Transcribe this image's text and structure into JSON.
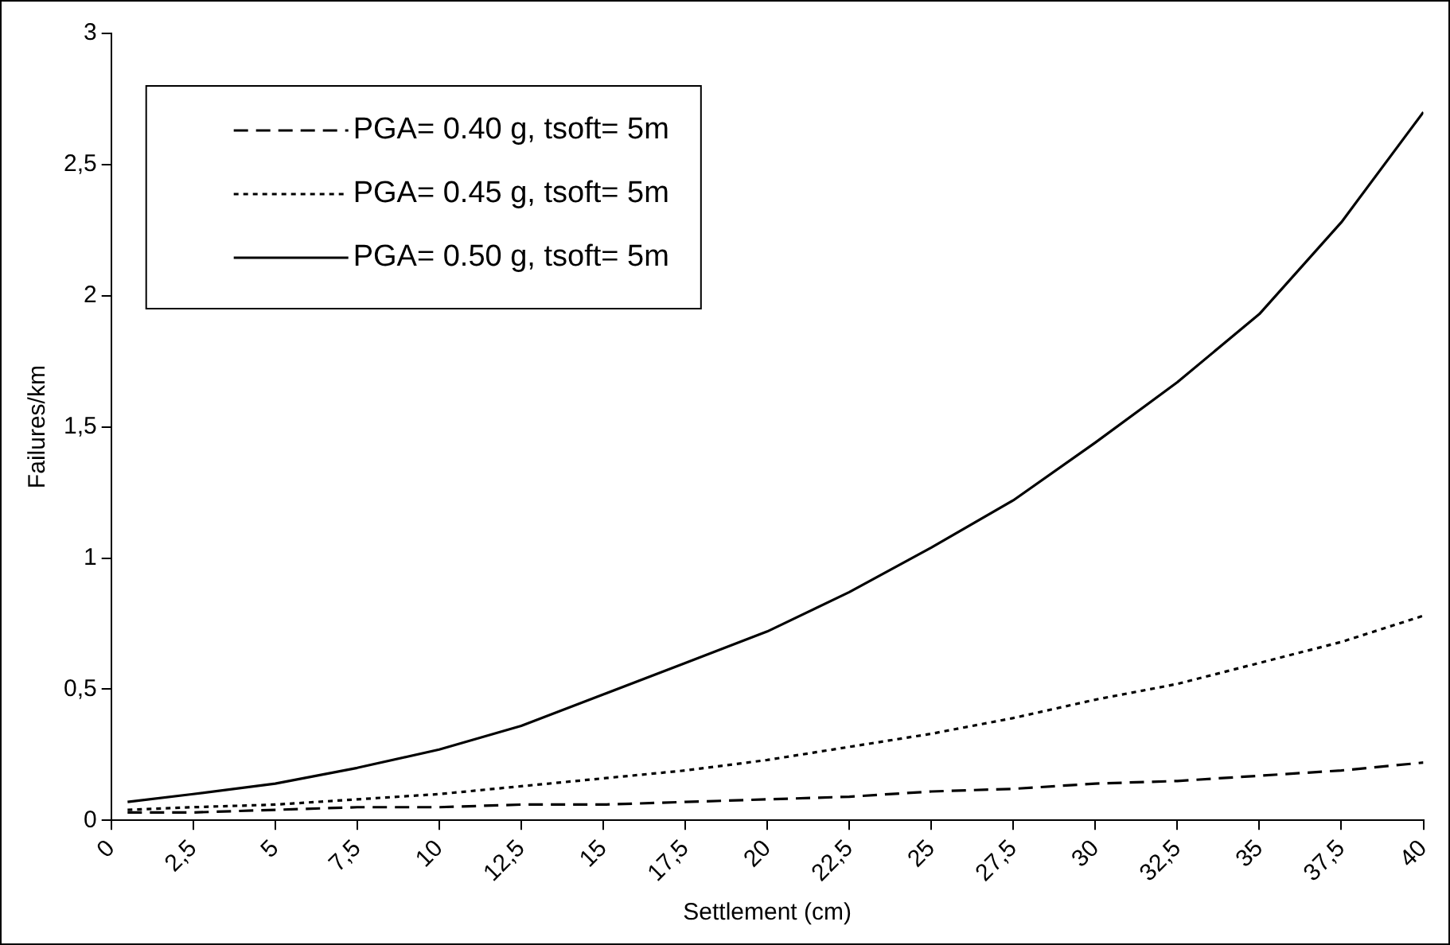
{
  "chart_data": {
    "type": "line",
    "xlabel": "Settlement (cm)",
    "ylabel": "Failures/km",
    "x": [
      0.5,
      2.5,
      5,
      7.5,
      10,
      12.5,
      15,
      17.5,
      20,
      22.5,
      25,
      27.5,
      30,
      32.5,
      35,
      37.5,
      40
    ],
    "series": [
      {
        "name": "PGA= 0.40 g, tsoft= 5m",
        "color": "#000000",
        "line_style": "dashed",
        "values": [
          0.03,
          0.03,
          0.04,
          0.05,
          0.05,
          0.06,
          0.06,
          0.07,
          0.08,
          0.09,
          0.11,
          0.12,
          0.14,
          0.15,
          0.17,
          0.19,
          0.22
        ]
      },
      {
        "name": "PGA= 0.45 g, tsoft= 5m",
        "color": "#000000",
        "line_style": "dotted",
        "values": [
          0.04,
          0.05,
          0.06,
          0.08,
          0.1,
          0.13,
          0.16,
          0.19,
          0.23,
          0.28,
          0.33,
          0.39,
          0.46,
          0.52,
          0.6,
          0.68,
          0.78
        ]
      },
      {
        "name": "PGA= 0.50 g, tsoft= 5m",
        "color": "#000000",
        "line_style": "solid",
        "values": [
          0.07,
          0.1,
          0.14,
          0.2,
          0.27,
          0.36,
          0.48,
          0.6,
          0.72,
          0.87,
          1.04,
          1.22,
          1.44,
          1.67,
          1.93,
          2.28,
          2.7
        ]
      }
    ],
    "xlim": [
      0,
      40
    ],
    "xticks": [
      0,
      {
        "value": 2.5,
        "label": "2,5"
      },
      5,
      {
        "value": 7.5,
        "label": "7,5"
      },
      10,
      {
        "value": 12.5,
        "label": "12,5"
      },
      15,
      {
        "value": 17.5,
        "label": "17,5"
      },
      20,
      {
        "value": 22.5,
        "label": "22,5"
      },
      25,
      {
        "value": 27.5,
        "label": "27,5"
      },
      30,
      {
        "value": 32.5,
        "label": "32,5"
      },
      35,
      {
        "value": 37.5,
        "label": "37,5"
      },
      40
    ],
    "ylim": [
      0,
      3
    ],
    "yticks": [
      0,
      {
        "value": 0.5,
        "label": "0,5"
      },
      1,
      {
        "value": 1.5,
        "label": "1,5"
      },
      2,
      {
        "value": 2.5,
        "label": "2,5"
      },
      3
    ],
    "grid": false,
    "legend": "top left",
    "marker": "none"
  }
}
